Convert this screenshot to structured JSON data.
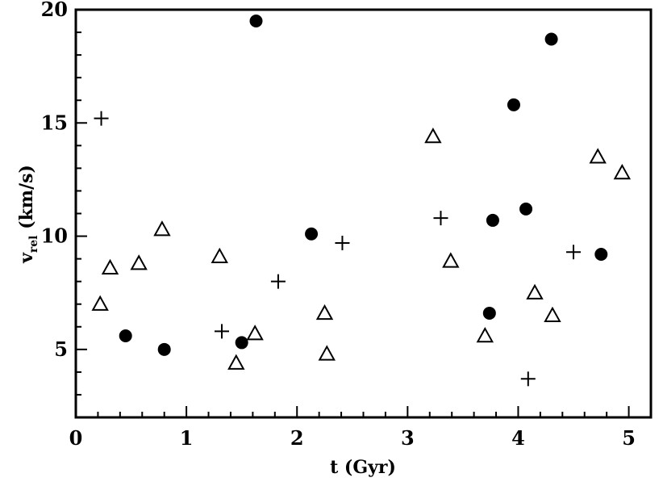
{
  "chart_data": {
    "type": "scatter",
    "xlabel": "t (Gyr)",
    "ylabel": {
      "main": "v",
      "sub": "rel",
      "unit": " (km/s)"
    },
    "xlim": [
      0,
      5.2
    ],
    "ylim": [
      2,
      20
    ],
    "x_ticks": [
      0,
      1,
      2,
      3,
      4,
      5
    ],
    "y_ticks": [
      5,
      10,
      15,
      20
    ],
    "x_minor_step": 0.2,
    "y_minor_step": 1,
    "grid": false,
    "series": [
      {
        "marker": "filled-circle",
        "color": "#000000",
        "points": [
          [
            0.45,
            5.6
          ],
          [
            0.8,
            5.0
          ],
          [
            1.5,
            5.3
          ],
          [
            1.63,
            19.5
          ],
          [
            2.13,
            10.1
          ],
          [
            3.74,
            6.6
          ],
          [
            3.77,
            10.7
          ],
          [
            3.96,
            15.8
          ],
          [
            4.07,
            11.2
          ],
          [
            4.3,
            18.7
          ],
          [
            4.75,
            9.2
          ]
        ]
      },
      {
        "marker": "open-triangle",
        "color": "#000000",
        "points": [
          [
            0.22,
            7.0
          ],
          [
            0.31,
            8.6
          ],
          [
            0.57,
            8.8
          ],
          [
            0.78,
            10.3
          ],
          [
            1.3,
            9.1
          ],
          [
            1.45,
            4.4
          ],
          [
            1.62,
            5.7
          ],
          [
            2.25,
            6.6
          ],
          [
            2.27,
            4.8
          ],
          [
            3.23,
            14.4
          ],
          [
            3.39,
            8.9
          ],
          [
            3.7,
            5.6
          ],
          [
            4.15,
            7.5
          ],
          [
            4.31,
            6.5
          ],
          [
            4.72,
            13.5
          ],
          [
            4.94,
            12.8
          ]
        ]
      },
      {
        "marker": "plus",
        "color": "#000000",
        "points": [
          [
            0.23,
            15.2
          ],
          [
            1.32,
            5.8
          ],
          [
            1.83,
            8.0
          ],
          [
            2.41,
            9.7
          ],
          [
            3.3,
            10.8
          ],
          [
            4.09,
            3.7
          ],
          [
            4.5,
            9.3
          ]
        ]
      }
    ]
  }
}
